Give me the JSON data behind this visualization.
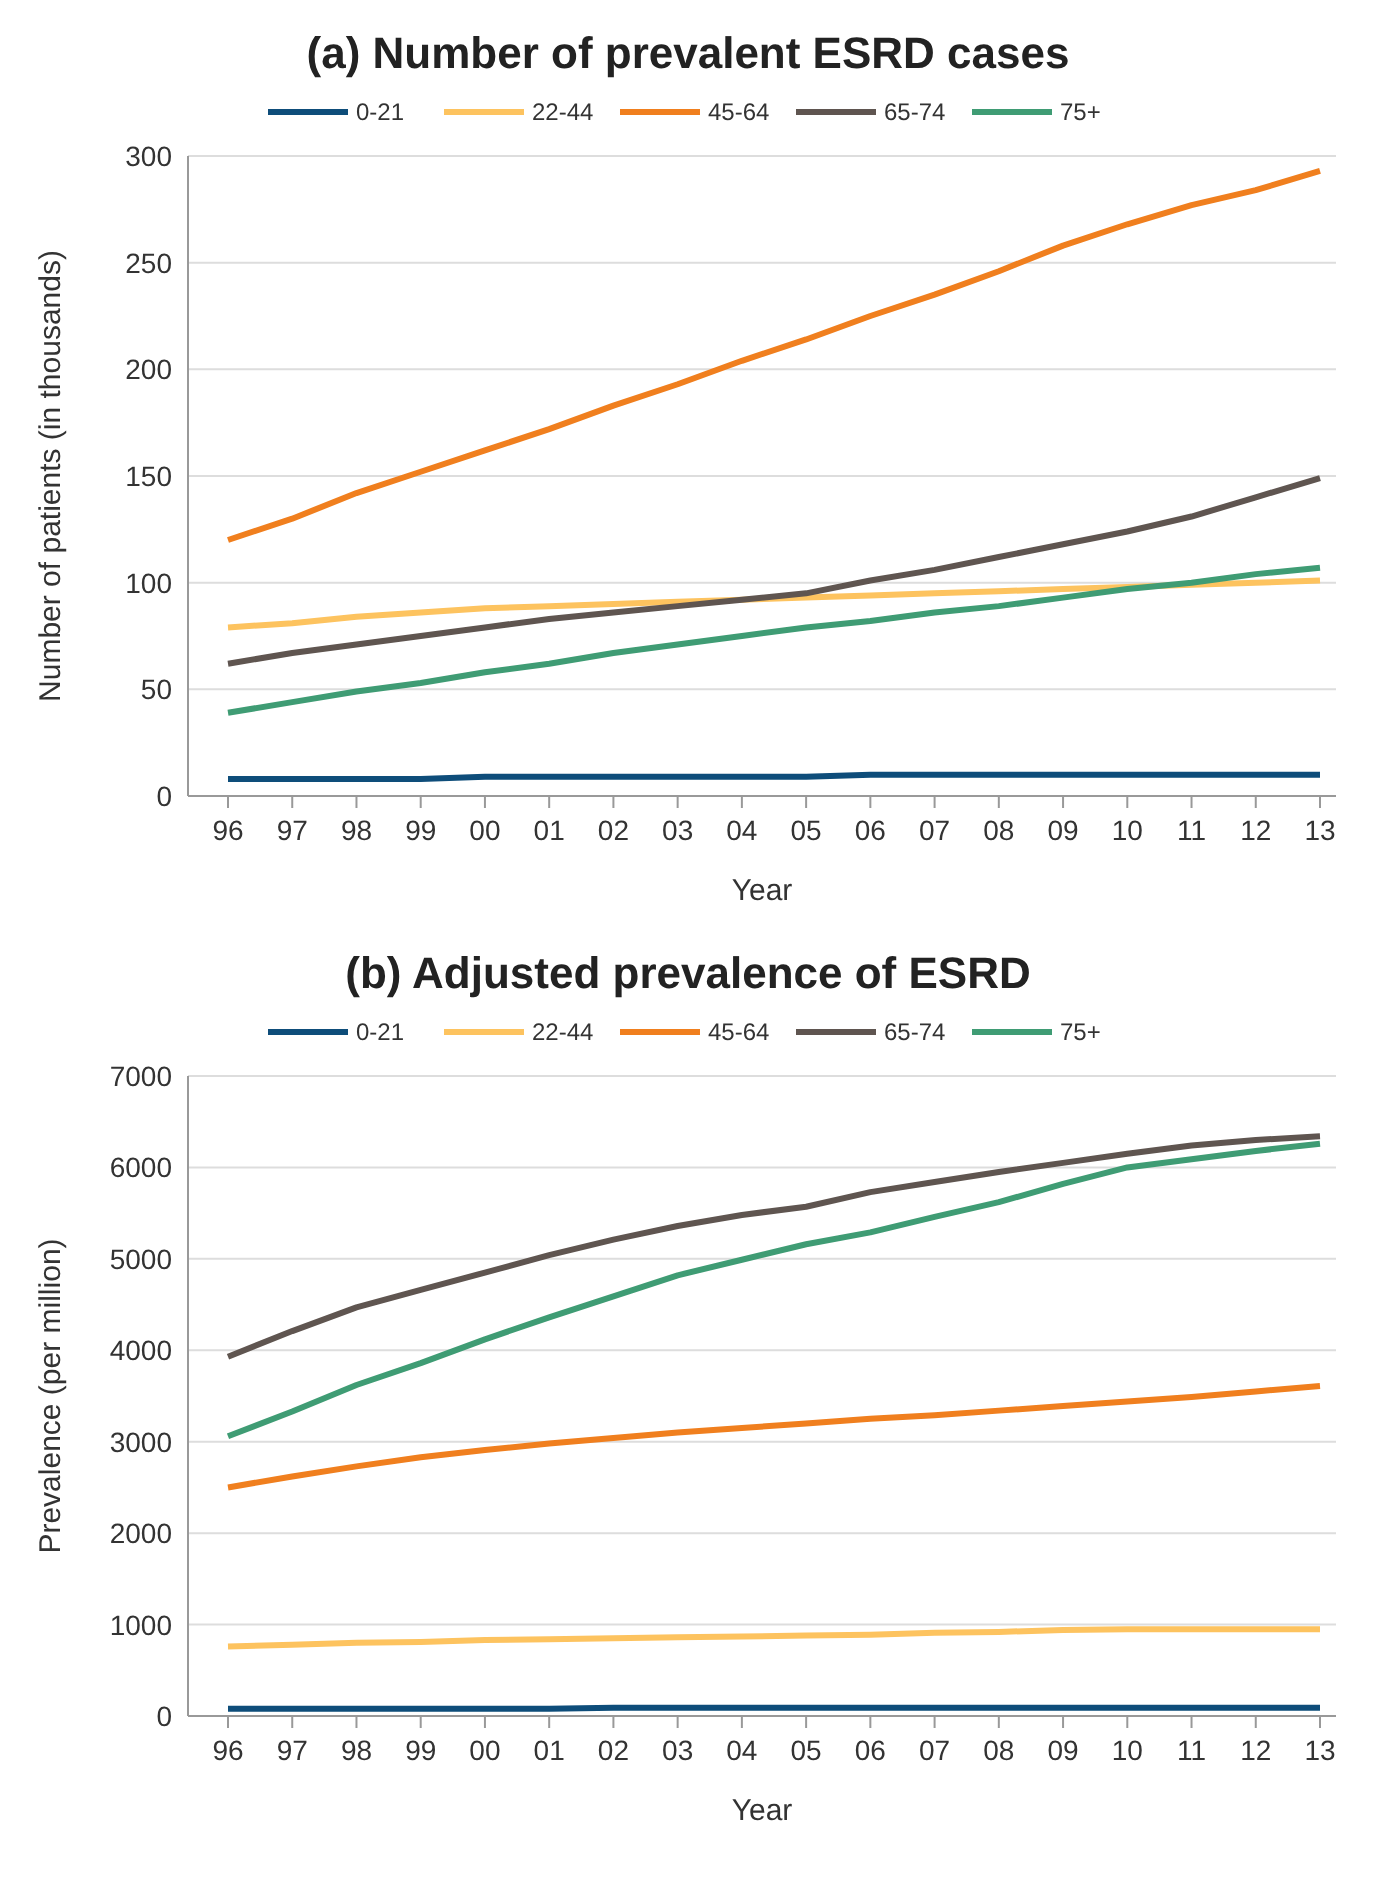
{
  "chart_data": [
    {
      "type": "line",
      "title": "(a) Number of prevalent ESRD cases",
      "xlabel": "Year",
      "ylabel": "Number of patients (in thousands)",
      "categories": [
        "96",
        "97",
        "98",
        "99",
        "00",
        "01",
        "02",
        "03",
        "04",
        "05",
        "06",
        "07",
        "08",
        "09",
        "10",
        "11",
        "12",
        "13"
      ],
      "ylim": [
        0,
        300
      ],
      "yticks": [
        0,
        50,
        100,
        150,
        200,
        250,
        300
      ],
      "grid": "y",
      "legend": "top",
      "series": [
        {
          "name": "0-21",
          "color": "#0e4d7a",
          "values": [
            8,
            8,
            8,
            8,
            9,
            9,
            9,
            9,
            9,
            9,
            10,
            10,
            10,
            10,
            10,
            10,
            10,
            10
          ]
        },
        {
          "name": "22-44",
          "color": "#fdc35f",
          "values": [
            79,
            81,
            84,
            86,
            88,
            89,
            90,
            91,
            92,
            93,
            94,
            95,
            96,
            97,
            98,
            99,
            100,
            101
          ]
        },
        {
          "name": "45-64",
          "color": "#f07f1e",
          "values": [
            120,
            130,
            142,
            152,
            162,
            172,
            183,
            193,
            204,
            214,
            225,
            235,
            246,
            258,
            268,
            277,
            284,
            293
          ]
        },
        {
          "name": "65-74",
          "color": "#5f5550",
          "values": [
            62,
            67,
            71,
            75,
            79,
            83,
            86,
            89,
            92,
            95,
            101,
            106,
            112,
            118,
            124,
            131,
            140,
            149
          ]
        },
        {
          "name": "75+",
          "color": "#3f9c74",
          "values": [
            39,
            44,
            49,
            53,
            58,
            62,
            67,
            71,
            75,
            79,
            82,
            86,
            89,
            93,
            97,
            100,
            104,
            107
          ]
        }
      ]
    },
    {
      "type": "line",
      "title": "(b) Adjusted prevalence of ESRD",
      "xlabel": "Year",
      "ylabel": "Prevalence (per million)",
      "categories": [
        "96",
        "97",
        "98",
        "99",
        "00",
        "01",
        "02",
        "03",
        "04",
        "05",
        "06",
        "07",
        "08",
        "09",
        "10",
        "11",
        "12",
        "13"
      ],
      "ylim": [
        0,
        7000
      ],
      "yticks": [
        0,
        1000,
        2000,
        3000,
        4000,
        5000,
        6000,
        7000
      ],
      "grid": "y",
      "legend": "top",
      "series": [
        {
          "name": "0-21",
          "color": "#0e4d7a",
          "values": [
            80,
            80,
            80,
            80,
            80,
            80,
            90,
            90,
            90,
            90,
            90,
            90,
            90,
            90,
            90,
            90,
            90,
            90
          ]
        },
        {
          "name": "22-44",
          "color": "#fdc35f",
          "values": [
            760,
            780,
            800,
            810,
            830,
            840,
            850,
            860,
            870,
            880,
            890,
            910,
            920,
            940,
            950,
            950,
            950,
            950
          ]
        },
        {
          "name": "45-64",
          "color": "#f07f1e",
          "values": [
            2500,
            2620,
            2730,
            2830,
            2910,
            2980,
            3040,
            3100,
            3150,
            3200,
            3250,
            3290,
            3340,
            3390,
            3440,
            3490,
            3550,
            3610
          ]
        },
        {
          "name": "65-74",
          "color": "#5f5550",
          "values": [
            3930,
            4210,
            4470,
            4660,
            4850,
            5040,
            5210,
            5360,
            5480,
            5570,
            5730,
            5840,
            5950,
            6050,
            6150,
            6240,
            6300,
            6340
          ]
        },
        {
          "name": "75+",
          "color": "#3f9c74",
          "values": [
            3060,
            3330,
            3620,
            3860,
            4120,
            4360,
            4590,
            4820,
            4990,
            5160,
            5290,
            5460,
            5620,
            5820,
            6000,
            6090,
            6180,
            6260
          ]
        }
      ]
    }
  ]
}
